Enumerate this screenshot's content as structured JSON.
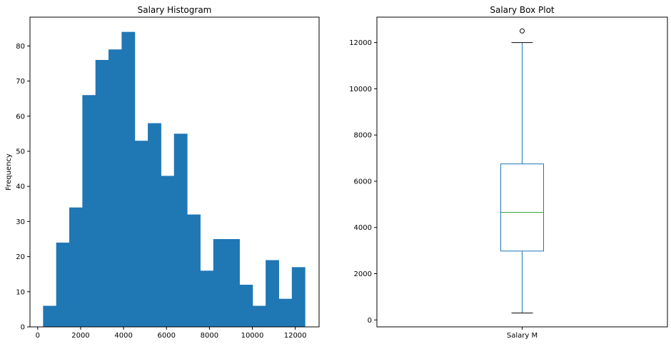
{
  "chart_data": [
    {
      "type": "bar",
      "subtype": "histogram",
      "title": "Salary Histogram",
      "xlabel": "",
      "ylabel": "Frequency",
      "xlim": [
        -360,
        13110
      ],
      "ylim": [
        0,
        88.2
      ],
      "x_ticks": [
        0,
        2000,
        4000,
        6000,
        8000,
        10000,
        12000
      ],
      "y_ticks": [
        0,
        10,
        20,
        30,
        40,
        50,
        60,
        70,
        80
      ],
      "bin_edges": [
        250,
        860,
        1470,
        2080,
        2690,
        3300,
        3910,
        4520,
        5130,
        5740,
        6350,
        6960,
        7570,
        8180,
        8790,
        9400,
        10010,
        10620,
        11230,
        11840,
        12450
      ],
      "values": [
        6,
        24,
        34,
        66,
        76,
        79,
        84,
        53,
        58,
        43,
        55,
        32,
        16,
        25,
        25,
        12,
        6,
        19,
        8,
        17
      ],
      "bar_color": "#1f77b4",
      "grid": false
    },
    {
      "type": "box",
      "title": "Salary Box Plot",
      "categories": [
        "Salary M"
      ],
      "ylim": [
        -300,
        13100
      ],
      "y_ticks": [
        0,
        2000,
        4000,
        6000,
        8000,
        10000,
        12000
      ],
      "whisker_low": 300,
      "q1": 2980,
      "median": 4650,
      "q3": 6750,
      "whisker_high": 12000,
      "outliers": [
        12500
      ],
      "box_color": "#1f77b4",
      "median_color": "#2ca02c",
      "grid": false
    }
  ]
}
